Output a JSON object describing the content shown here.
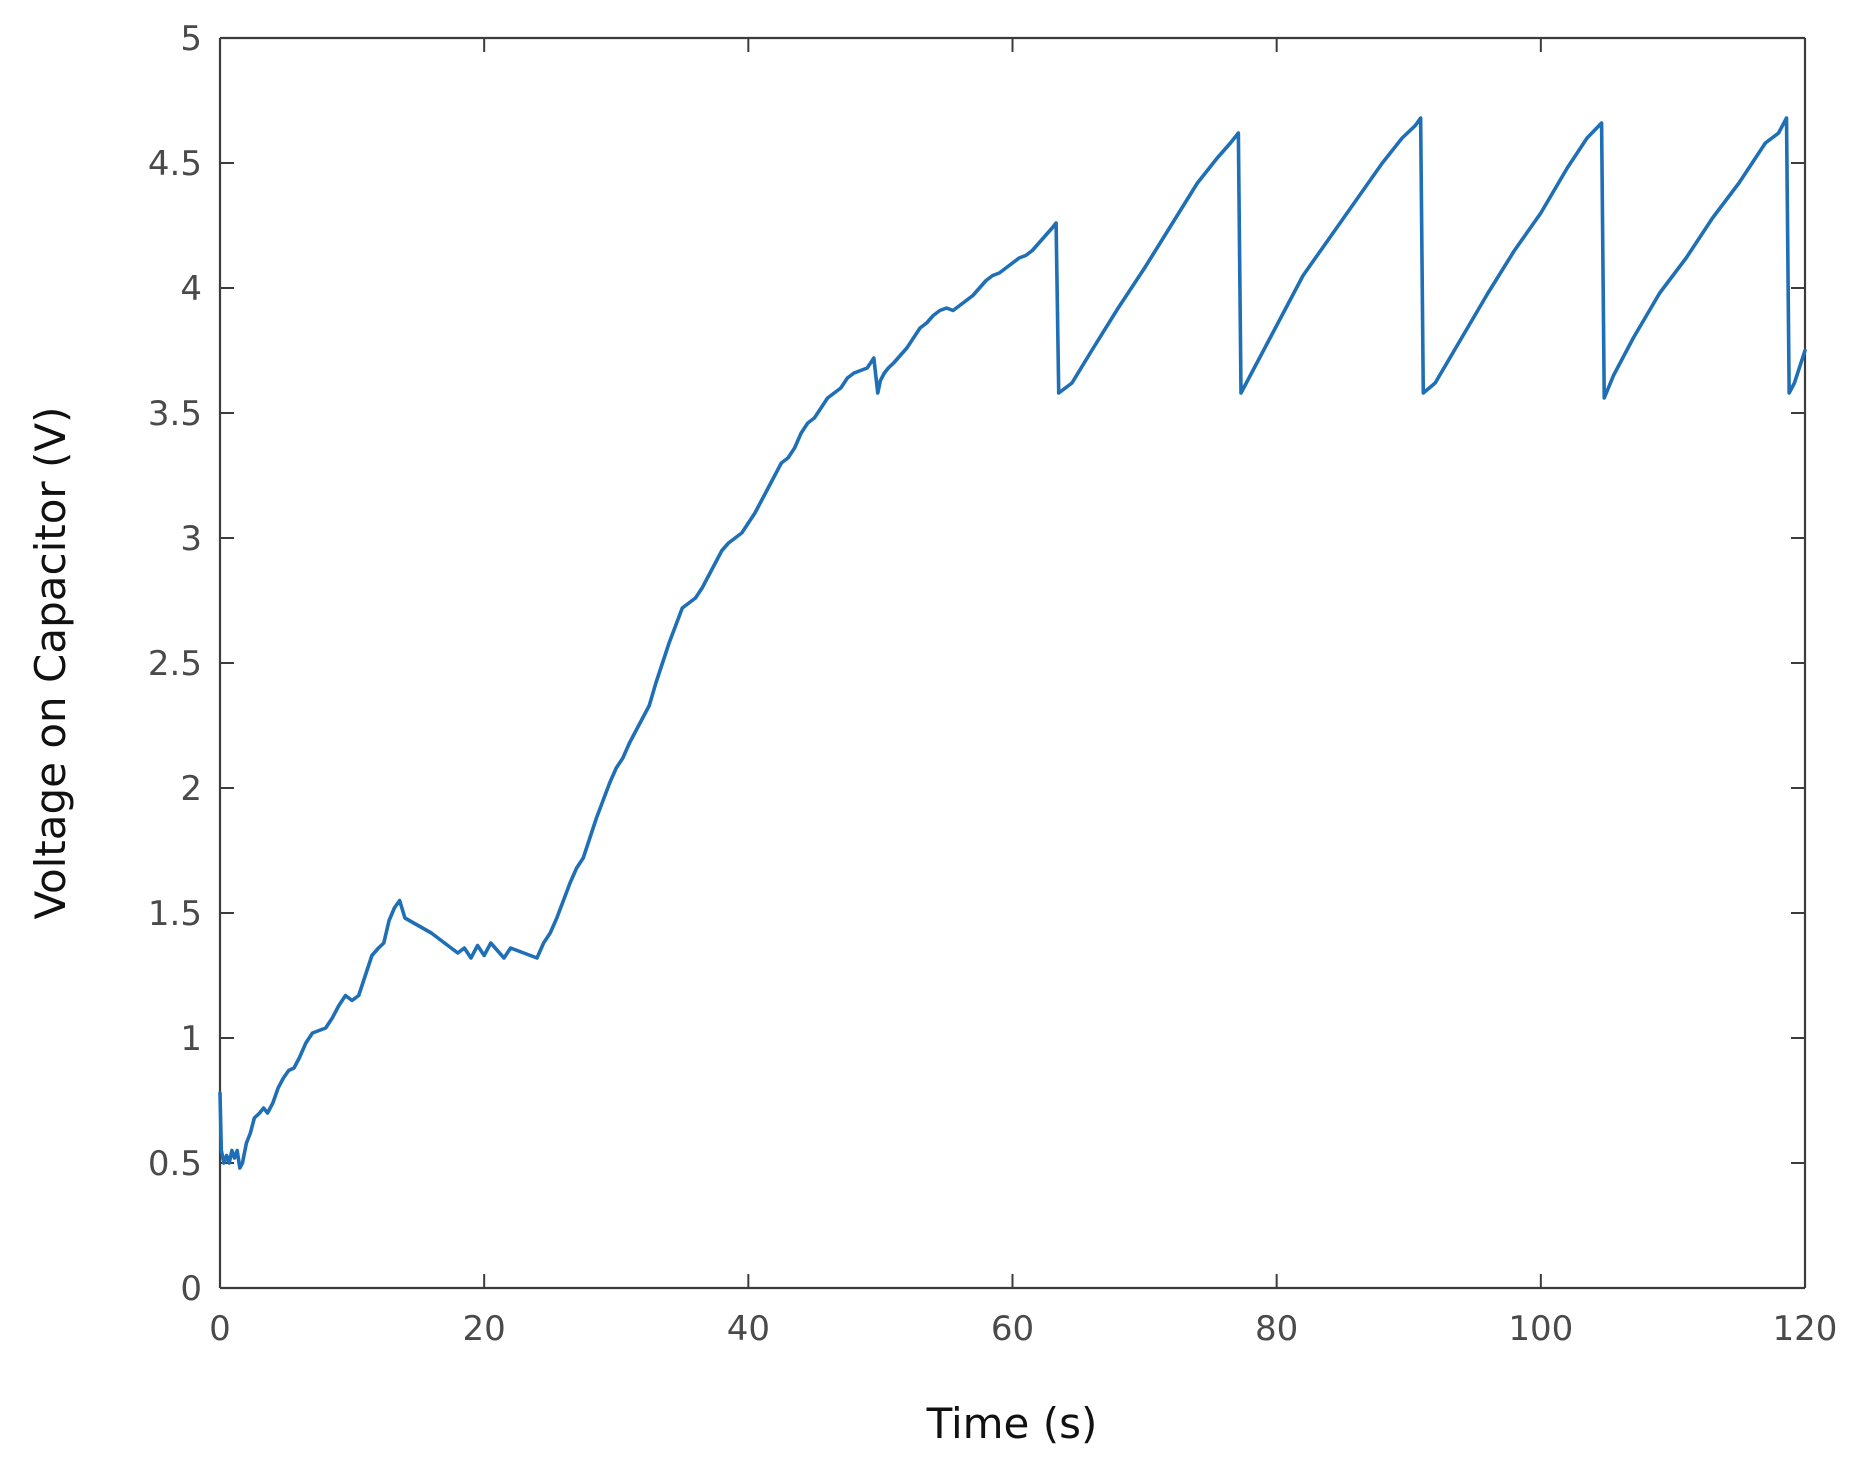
{
  "chart_data": {
    "type": "line",
    "title": "",
    "xlabel": "Time (s)",
    "ylabel": "Voltage on Capacitor (V)",
    "xlim": [
      0,
      120
    ],
    "ylim": [
      0,
      5
    ],
    "x_ticks": [
      0,
      20,
      40,
      60,
      80,
      100,
      120
    ],
    "y_ticks": [
      0,
      0.5,
      1,
      1.5,
      2,
      2.5,
      3,
      3.5,
      4,
      4.5,
      5
    ],
    "x_tick_labels": [
      "0",
      "20",
      "40",
      "60",
      "80",
      "100",
      "120"
    ],
    "y_tick_labels": [
      "0",
      "0.5",
      "1",
      "1.5",
      "2",
      "2.5",
      "3",
      "3.5",
      "4",
      "4.5",
      "5"
    ],
    "grid": false,
    "box": true,
    "colors": {
      "line": "#1f6fb6",
      "axes": "#3c3c3c",
      "tick_text": "#4a4a4a",
      "label_text": "#111111"
    },
    "series": [
      {
        "x": [
          0,
          0.1,
          0.3,
          0.5,
          0.7,
          0.9,
          1.1,
          1.3,
          1.5,
          1.7,
          2.0,
          2.3,
          2.6,
          3.0,
          3.3,
          3.6,
          4.0,
          4.4,
          4.8,
          5.2,
          5.6,
          6.0,
          6.5,
          7.0,
          7.5,
          8.0,
          8.5,
          9.0,
          9.5,
          10.0,
          10.5,
          11.0,
          11.5,
          12.0,
          12.4,
          12.8,
          13.2,
          13.6,
          14.0,
          15.0,
          16.0,
          17.0,
          17.5,
          18.0,
          18.5,
          19.0,
          19.5,
          20.0,
          20.5,
          21.0,
          21.5,
          22.0,
          22.5,
          23.0,
          23.5,
          24.0,
          24.5,
          25.0,
          25.5,
          26.0,
          26.5,
          27.0,
          27.5,
          28.0,
          28.5,
          29.0,
          29.5,
          30.0,
          30.5,
          31.0,
          31.5,
          32.0,
          32.5,
          33.0,
          33.5,
          34.0,
          34.5,
          35.0,
          35.5,
          36.0,
          36.5,
          37.0,
          37.5,
          38.0,
          38.5,
          39.0,
          39.5,
          40.0,
          40.5,
          41.0,
          41.5,
          42.0,
          42.5,
          43.0,
          43.5,
          44.0,
          44.5,
          45.0,
          45.5,
          46.0,
          46.5,
          47.0,
          47.5,
          48.0,
          48.5,
          49.0,
          49.5,
          49.8,
          50.0,
          50.3,
          50.6,
          51.0,
          51.5,
          52.0,
          52.5,
          53.0,
          53.5,
          54.0,
          54.5,
          55.0,
          55.5,
          56.0,
          56.5,
          57.0,
          57.5,
          58.0,
          58.5,
          59.0,
          59.5,
          60.0,
          60.5,
          61.0,
          61.5,
          62.0,
          62.5,
          63.0,
          63.3,
          63.5,
          64.5,
          66.0,
          68.0,
          70.0,
          72.0,
          74.0,
          75.5,
          76.5,
          77.1,
          77.3,
          78.0,
          80.0,
          82.0,
          84.0,
          86.0,
          88.0,
          89.5,
          90.5,
          90.9,
          91.1,
          92.0,
          94.0,
          96.0,
          98.0,
          100.0,
          102.0,
          103.5,
          104.6,
          104.8,
          105.5,
          107.0,
          109.0,
          111.0,
          113.0,
          115.0,
          117.0,
          118.0,
          118.6,
          118.8,
          119.2,
          120.0
        ],
        "y": [
          0.78,
          0.55,
          0.5,
          0.53,
          0.5,
          0.55,
          0.52,
          0.55,
          0.48,
          0.5,
          0.58,
          0.62,
          0.68,
          0.7,
          0.72,
          0.7,
          0.74,
          0.8,
          0.84,
          0.87,
          0.88,
          0.92,
          0.98,
          1.02,
          1.03,
          1.04,
          1.08,
          1.13,
          1.17,
          1.15,
          1.17,
          1.25,
          1.33,
          1.36,
          1.38,
          1.47,
          1.52,
          1.55,
          1.48,
          1.45,
          1.42,
          1.38,
          1.36,
          1.34,
          1.36,
          1.32,
          1.37,
          1.33,
          1.38,
          1.35,
          1.32,
          1.36,
          1.35,
          1.34,
          1.33,
          1.32,
          1.38,
          1.42,
          1.48,
          1.55,
          1.62,
          1.68,
          1.72,
          1.8,
          1.88,
          1.95,
          2.02,
          2.08,
          2.12,
          2.18,
          2.23,
          2.28,
          2.33,
          2.42,
          2.5,
          2.58,
          2.65,
          2.72,
          2.74,
          2.76,
          2.8,
          2.85,
          2.9,
          2.95,
          2.98,
          3.0,
          3.02,
          3.06,
          3.1,
          3.15,
          3.2,
          3.25,
          3.3,
          3.32,
          3.36,
          3.42,
          3.46,
          3.48,
          3.52,
          3.56,
          3.58,
          3.6,
          3.64,
          3.66,
          3.67,
          3.68,
          3.72,
          3.58,
          3.63,
          3.66,
          3.68,
          3.7,
          3.73,
          3.76,
          3.8,
          3.84,
          3.86,
          3.89,
          3.91,
          3.92,
          3.91,
          3.93,
          3.95,
          3.97,
          4.0,
          4.03,
          4.05,
          4.06,
          4.08,
          4.1,
          4.12,
          4.13,
          4.15,
          4.18,
          4.21,
          4.24,
          4.26,
          3.58,
          3.62,
          3.75,
          3.92,
          4.08,
          4.25,
          4.42,
          4.52,
          4.58,
          4.62,
          3.58,
          3.65,
          3.85,
          4.05,
          4.2,
          4.35,
          4.5,
          4.6,
          4.65,
          4.68,
          3.58,
          3.62,
          3.8,
          3.98,
          4.15,
          4.3,
          4.48,
          4.6,
          4.66,
          3.56,
          3.65,
          3.8,
          3.98,
          4.12,
          4.28,
          4.42,
          4.58,
          4.62,
          4.68,
          3.58,
          3.62,
          3.75
        ]
      }
    ]
  }
}
